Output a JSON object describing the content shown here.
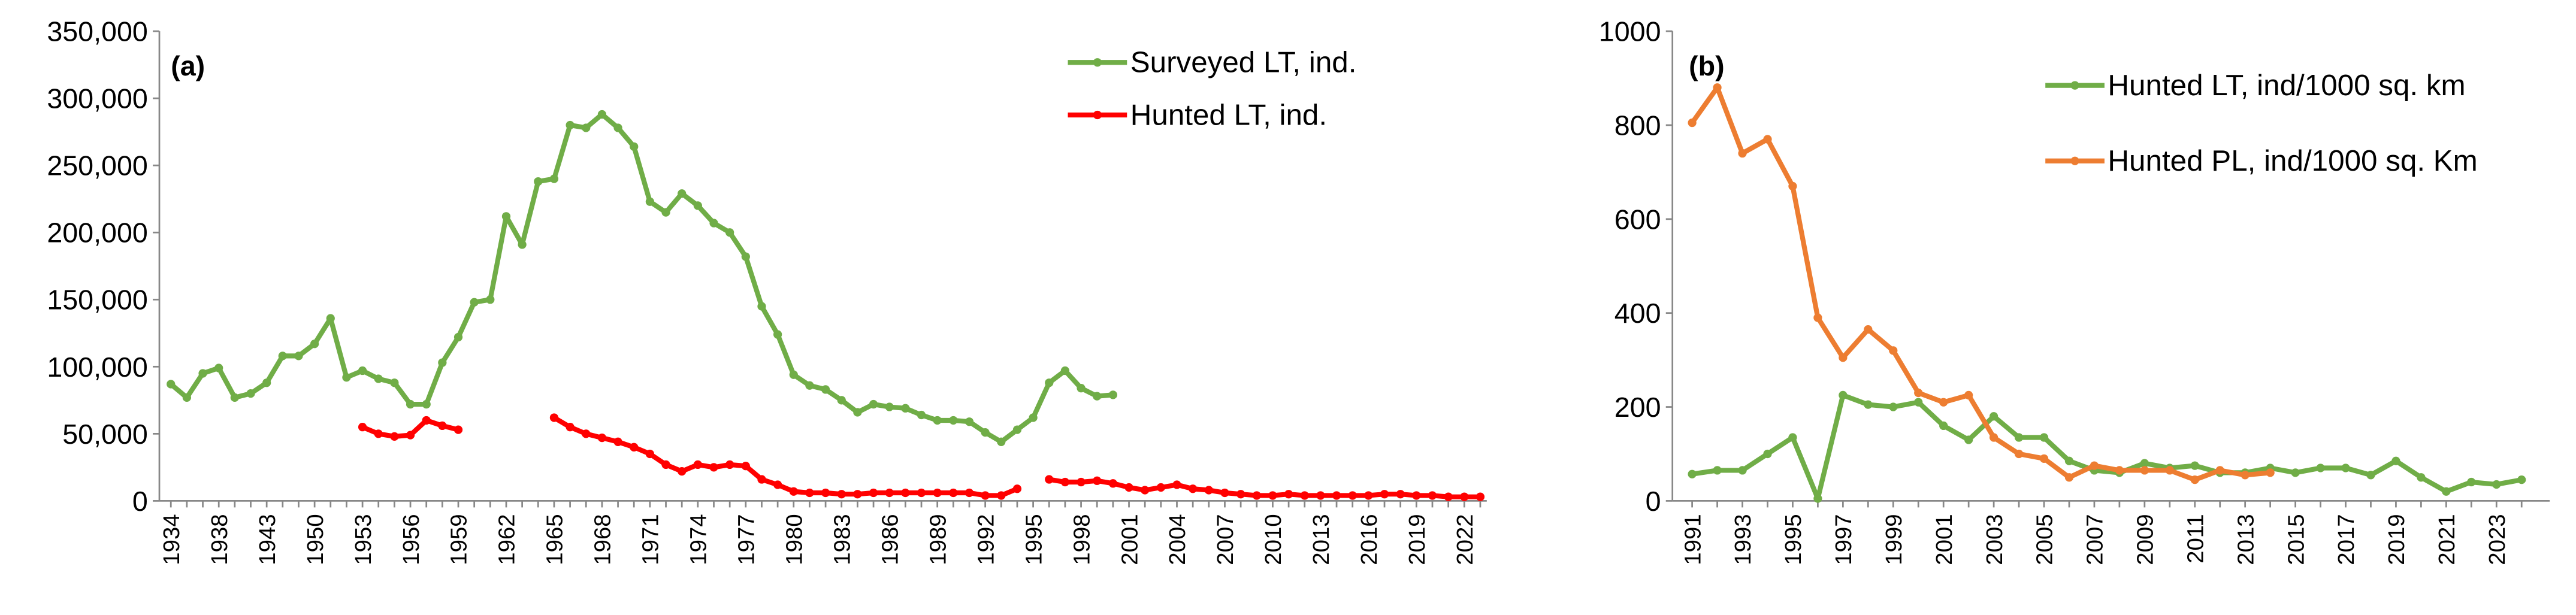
{
  "chart_data": [
    {
      "type": "line",
      "annotation": "(a)",
      "legend": "upper right",
      "grid": false,
      "categories": [
        "1934",
        null,
        null,
        "1938",
        null,
        null,
        "1943",
        null,
        null,
        "1950",
        null,
        null,
        "1953",
        null,
        null,
        "1956",
        null,
        null,
        "1959",
        null,
        null,
        "1962",
        null,
        null,
        "1965",
        null,
        null,
        "1968",
        null,
        null,
        "1971",
        null,
        null,
        "1974",
        null,
        null,
        "1977",
        null,
        null,
        "1980",
        null,
        null,
        "1983",
        null,
        null,
        "1986",
        null,
        null,
        "1989",
        null,
        null,
        "1992",
        null,
        null,
        "1995",
        null,
        null,
        "1998",
        null,
        null,
        "2001",
        null,
        null,
        "2004",
        null,
        null,
        "2007",
        null,
        null,
        "2010",
        null,
        null,
        "2013",
        null,
        null,
        "2016",
        null,
        null,
        "2019",
        null,
        null,
        "2022",
        null
      ],
      "ylim": [
        0,
        350000
      ],
      "yticks": [
        {
          "value": 0,
          "label": "0"
        },
        {
          "value": 50000,
          "label": "50,000"
        },
        {
          "value": 100000,
          "label": "100,000"
        },
        {
          "value": 150000,
          "label": "150,000"
        },
        {
          "value": 200000,
          "label": "200,000"
        },
        {
          "value": 250000,
          "label": "250,000"
        },
        {
          "value": 300000,
          "label": "300,000"
        },
        {
          "value": 350000,
          "label": "350,000"
        }
      ],
      "series": [
        {
          "name": "Surveyed LT, ind.",
          "color": "#70ad47",
          "values": [
            87000,
            77000,
            95000,
            99000,
            77000,
            80000,
            88000,
            108000,
            108000,
            117000,
            136000,
            92000,
            97000,
            91000,
            88000,
            72000,
            72000,
            103000,
            122000,
            148000,
            150000,
            212000,
            191000,
            238000,
            240000,
            280000,
            278000,
            288000,
            278000,
            264000,
            223000,
            215000,
            229000,
            220000,
            207000,
            200000,
            182000,
            145000,
            124000,
            94000,
            86000,
            83000,
            75000,
            66000,
            72000,
            70000,
            69000,
            64000,
            60000,
            60000,
            59000,
            51000,
            44000,
            53000,
            62000,
            88000,
            97000,
            84000,
            78000,
            79000,
            null,
            null,
            null,
            null,
            null,
            null,
            null,
            null,
            null,
            null,
            null,
            null,
            null,
            null,
            null,
            null,
            null,
            null,
            null,
            null,
            null,
            null,
            null
          ]
        },
        {
          "name": "Hunted LT, ind.",
          "color": "#ff0000",
          "values": [
            null,
            null,
            null,
            null,
            null,
            null,
            null,
            null,
            null,
            null,
            null,
            null,
            55000,
            50000,
            48000,
            49000,
            60000,
            56000,
            53000,
            null,
            null,
            null,
            null,
            null,
            62000,
            55000,
            50000,
            47000,
            44000,
            40000,
            35000,
            27000,
            22000,
            27000,
            25000,
            27000,
            26000,
            16000,
            12000,
            7000,
            6000,
            6000,
            5000,
            5000,
            6000,
            6000,
            6000,
            6000,
            6000,
            6000,
            6000,
            4000,
            4000,
            9000,
            null,
            16000,
            14000,
            14000,
            15000,
            13000,
            10000,
            8000,
            10000,
            12000,
            9000,
            8000,
            6000,
            5000,
            4000,
            4000,
            5000,
            4000,
            4000,
            4000,
            4000,
            4000,
            5000,
            5000,
            4000,
            4000,
            3000,
            3000,
            3000
          ]
        }
      ]
    },
    {
      "type": "line",
      "annotation": "(b)",
      "legend": "upper right",
      "grid": false,
      "categories": [
        "1991",
        null,
        "1993",
        null,
        "1995",
        null,
        "1997",
        null,
        "1999",
        null,
        "2001",
        null,
        "2003",
        null,
        "2005",
        null,
        "2007",
        null,
        "2009",
        null,
        "2011",
        null,
        "2013",
        null,
        "2015",
        null,
        "2017",
        null,
        "2019",
        null,
        "2021",
        null,
        "2023",
        null
      ],
      "ylim": [
        0,
        1000
      ],
      "yticks": [
        0,
        200,
        400,
        600,
        800,
        1000
      ],
      "series": [
        {
          "name": "Hunted LT, ind/1000 sq. km",
          "color": "#70ad47",
          "values": [
            57,
            65,
            65,
            100,
            135,
            5,
            225,
            205,
            200,
            210,
            160,
            130,
            180,
            135,
            135,
            85,
            65,
            60,
            80,
            70,
            75,
            60,
            60,
            70,
            60,
            70,
            70,
            55,
            85,
            50,
            20,
            40,
            35,
            45
          ]
        },
        {
          "name": "Hunted PL, ind/1000 sq. Km",
          "color": "#ed7d31",
          "values": [
            805,
            880,
            740,
            770,
            670,
            390,
            305,
            365,
            320,
            230,
            210,
            225,
            135,
            100,
            90,
            50,
            75,
            65,
            65,
            65,
            45,
            65,
            55,
            60,
            null,
            null,
            null,
            null,
            null,
            null,
            null,
            null,
            null,
            null
          ]
        }
      ]
    }
  ]
}
